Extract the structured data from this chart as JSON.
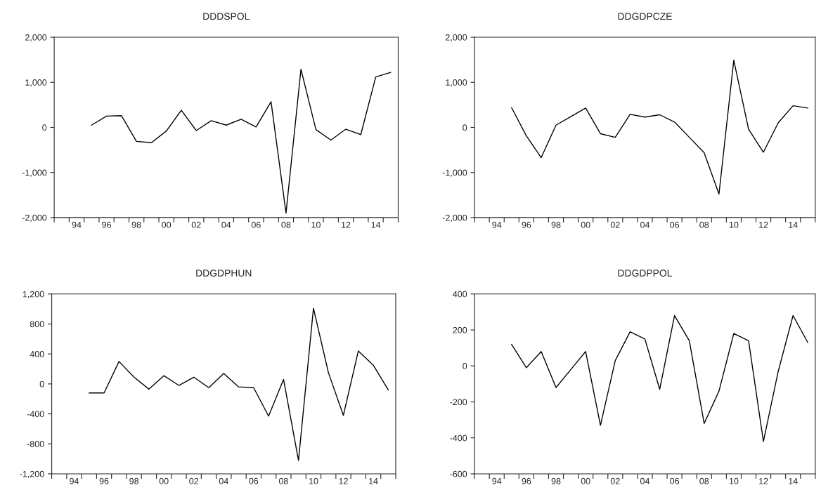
{
  "chart_data": [
    {
      "type": "line",
      "title": "DDDSPOL",
      "x": [
        1995,
        1996,
        1997,
        1998,
        1999,
        2000,
        2001,
        2002,
        2003,
        2004,
        2005,
        2006,
        2007,
        2008,
        2009,
        2010,
        2011,
        2012,
        2013,
        2014,
        2015
      ],
      "series": [
        {
          "color": "#000000",
          "values": [
            50,
            250,
            260,
            -310,
            -340,
            -80,
            380,
            -70,
            150,
            50,
            180,
            10,
            570,
            -1900,
            1290,
            -50,
            -280,
            -40,
            -160,
            1120,
            1220
          ]
        }
      ],
      "xlim": [
        1992.5,
        2015.5
      ],
      "xticks": [
        {
          "value": 1992.5,
          "label": null
        },
        {
          "value": 1993.5,
          "label": null
        },
        {
          "value": 1994,
          "label": "94"
        },
        {
          "value": 1994.5,
          "label": null
        },
        {
          "value": 1995.5,
          "label": null
        },
        {
          "value": 1996,
          "label": "96"
        },
        {
          "value": 1996.5,
          "label": null
        },
        {
          "value": 1997.5,
          "label": null
        },
        {
          "value": 1998,
          "label": "98"
        },
        {
          "value": 1998.5,
          "label": null
        },
        {
          "value": 1999.5,
          "label": null
        },
        {
          "value": 2000,
          "label": "00"
        },
        {
          "value": 2000.5,
          "label": null
        },
        {
          "value": 2001.5,
          "label": null
        },
        {
          "value": 2002,
          "label": "02"
        },
        {
          "value": 2002.5,
          "label": null
        },
        {
          "value": 2003.5,
          "label": null
        },
        {
          "value": 2004,
          "label": "04"
        },
        {
          "value": 2004.5,
          "label": null
        },
        {
          "value": 2005.5,
          "label": null
        },
        {
          "value": 2006,
          "label": "06"
        },
        {
          "value": 2006.5,
          "label": null
        },
        {
          "value": 2007.5,
          "label": null
        },
        {
          "value": 2008,
          "label": "08"
        },
        {
          "value": 2008.5,
          "label": null
        },
        {
          "value": 2009.5,
          "label": null
        },
        {
          "value": 2010,
          "label": "10"
        },
        {
          "value": 2010.5,
          "label": null
        },
        {
          "value": 2011.5,
          "label": null
        },
        {
          "value": 2012,
          "label": "12"
        },
        {
          "value": 2012.5,
          "label": null
        },
        {
          "value": 2013.5,
          "label": null
        },
        {
          "value": 2014,
          "label": "14"
        },
        {
          "value": 2014.5,
          "label": null
        },
        {
          "value": 2015.5,
          "label": null
        }
      ],
      "ylim": [
        -2000,
        2000
      ],
      "yticks": [
        {
          "value": -2000,
          "label": "-2,000"
        },
        {
          "value": -1000,
          "label": "-1,000"
        },
        0,
        {
          "value": 1000,
          "label": "1,000"
        },
        {
          "value": 2000,
          "label": "2,000"
        }
      ],
      "grid": false,
      "line_style": "solid",
      "marker": "none"
    },
    {
      "type": "line",
      "title": "DDGDPCZE",
      "x": [
        1995,
        1996,
        1997,
        1998,
        1999,
        2000,
        2001,
        2002,
        2003,
        2004,
        2005,
        2006,
        2007,
        2008,
        2009,
        2010,
        2011,
        2012,
        2013,
        2014,
        2015
      ],
      "series": [
        {
          "color": "#000000",
          "values": [
            440,
            -190,
            -670,
            50,
            240,
            430,
            -140,
            -220,
            290,
            230,
            280,
            120,
            -220,
            -560,
            -1480,
            1490,
            -40,
            -550,
            100,
            480,
            430
          ]
        }
      ],
      "xlim": [
        1992.5,
        2015.5
      ],
      "xticks": [
        {
          "value": 1992.5,
          "label": null
        },
        {
          "value": 1993.5,
          "label": null
        },
        {
          "value": 1994,
          "label": "94"
        },
        {
          "value": 1994.5,
          "label": null
        },
        {
          "value": 1995.5,
          "label": null
        },
        {
          "value": 1996,
          "label": "96"
        },
        {
          "value": 1996.5,
          "label": null
        },
        {
          "value": 1997.5,
          "label": null
        },
        {
          "value": 1998,
          "label": "98"
        },
        {
          "value": 1998.5,
          "label": null
        },
        {
          "value": 1999.5,
          "label": null
        },
        {
          "value": 2000,
          "label": "00"
        },
        {
          "value": 2000.5,
          "label": null
        },
        {
          "value": 2001.5,
          "label": null
        },
        {
          "value": 2002,
          "label": "02"
        },
        {
          "value": 2002.5,
          "label": null
        },
        {
          "value": 2003.5,
          "label": null
        },
        {
          "value": 2004,
          "label": "04"
        },
        {
          "value": 2004.5,
          "label": null
        },
        {
          "value": 2005.5,
          "label": null
        },
        {
          "value": 2006,
          "label": "06"
        },
        {
          "value": 2006.5,
          "label": null
        },
        {
          "value": 2007.5,
          "label": null
        },
        {
          "value": 2008,
          "label": "08"
        },
        {
          "value": 2008.5,
          "label": null
        },
        {
          "value": 2009.5,
          "label": null
        },
        {
          "value": 2010,
          "label": "10"
        },
        {
          "value": 2010.5,
          "label": null
        },
        {
          "value": 2011.5,
          "label": null
        },
        {
          "value": 2012,
          "label": "12"
        },
        {
          "value": 2012.5,
          "label": null
        },
        {
          "value": 2013.5,
          "label": null
        },
        {
          "value": 2014,
          "label": "14"
        },
        {
          "value": 2014.5,
          "label": null
        },
        {
          "value": 2015.5,
          "label": null
        }
      ],
      "ylim": [
        -2000,
        2000
      ],
      "yticks": [
        {
          "value": -2000,
          "label": "-2,000"
        },
        {
          "value": -1000,
          "label": "-1,000"
        },
        0,
        {
          "value": 1000,
          "label": "1,000"
        },
        {
          "value": 2000,
          "label": "2,000"
        }
      ],
      "grid": false,
      "line_style": "solid",
      "marker": "none"
    },
    {
      "type": "line",
      "title": "DDGDPHUN",
      "x": [
        1995,
        1996,
        1997,
        1998,
        1999,
        2000,
        2001,
        2002,
        2003,
        2004,
        2005,
        2006,
        2007,
        2008,
        2009,
        2010,
        2011,
        2012,
        2013,
        2014,
        2015
      ],
      "series": [
        {
          "color": "#000000",
          "values": [
            -120,
            -120,
            300,
            90,
            -70,
            110,
            -20,
            90,
            -50,
            140,
            -40,
            -50,
            -430,
            60,
            -1020,
            1010,
            150,
            -420,
            440,
            250,
            -80
          ]
        }
      ],
      "xlim": [
        1992.5,
        2015.5
      ],
      "xticks": [
        {
          "value": 1992.5,
          "label": null
        },
        {
          "value": 1993.5,
          "label": null
        },
        {
          "value": 1994,
          "label": "94"
        },
        {
          "value": 1994.5,
          "label": null
        },
        {
          "value": 1995.5,
          "label": null
        },
        {
          "value": 1996,
          "label": "96"
        },
        {
          "value": 1996.5,
          "label": null
        },
        {
          "value": 1997.5,
          "label": null
        },
        {
          "value": 1998,
          "label": "98"
        },
        {
          "value": 1998.5,
          "label": null
        },
        {
          "value": 1999.5,
          "label": null
        },
        {
          "value": 2000,
          "label": "00"
        },
        {
          "value": 2000.5,
          "label": null
        },
        {
          "value": 2001.5,
          "label": null
        },
        {
          "value": 2002,
          "label": "02"
        },
        {
          "value": 2002.5,
          "label": null
        },
        {
          "value": 2003.5,
          "label": null
        },
        {
          "value": 2004,
          "label": "04"
        },
        {
          "value": 2004.5,
          "label": null
        },
        {
          "value": 2005.5,
          "label": null
        },
        {
          "value": 2006,
          "label": "06"
        },
        {
          "value": 2006.5,
          "label": null
        },
        {
          "value": 2007.5,
          "label": null
        },
        {
          "value": 2008,
          "label": "08"
        },
        {
          "value": 2008.5,
          "label": null
        },
        {
          "value": 2009.5,
          "label": null
        },
        {
          "value": 2010,
          "label": "10"
        },
        {
          "value": 2010.5,
          "label": null
        },
        {
          "value": 2011.5,
          "label": null
        },
        {
          "value": 2012,
          "label": "12"
        },
        {
          "value": 2012.5,
          "label": null
        },
        {
          "value": 2013.5,
          "label": null
        },
        {
          "value": 2014,
          "label": "14"
        },
        {
          "value": 2014.5,
          "label": null
        },
        {
          "value": 2015.5,
          "label": null
        }
      ],
      "ylim": [
        -1200,
        1200
      ],
      "yticks": [
        {
          "value": -1200,
          "label": "-1,200"
        },
        -800,
        -400,
        0,
        400,
        800,
        {
          "value": 1200,
          "label": "1,200"
        }
      ],
      "grid": false,
      "line_style": "solid",
      "marker": "none"
    },
    {
      "type": "line",
      "title": "DDGDPPOL",
      "x": [
        1995,
        1996,
        1997,
        1998,
        1999,
        2000,
        2001,
        2002,
        2003,
        2004,
        2005,
        2006,
        2007,
        2008,
        2009,
        2010,
        2011,
        2012,
        2013,
        2014,
        2015
      ],
      "series": [
        {
          "color": "#000000",
          "values": [
            120,
            -10,
            80,
            -120,
            -20,
            80,
            -330,
            30,
            190,
            150,
            -130,
            280,
            140,
            -320,
            -140,
            180,
            140,
            -420,
            -30,
            280,
            130
          ]
        }
      ],
      "xlim": [
        1992.5,
        2015.5
      ],
      "xticks": [
        {
          "value": 1992.5,
          "label": null
        },
        {
          "value": 1993.5,
          "label": null
        },
        {
          "value": 1994,
          "label": "94"
        },
        {
          "value": 1994.5,
          "label": null
        },
        {
          "value": 1995.5,
          "label": null
        },
        {
          "value": 1996,
          "label": "96"
        },
        {
          "value": 1996.5,
          "label": null
        },
        {
          "value": 1997.5,
          "label": null
        },
        {
          "value": 1998,
          "label": "98"
        },
        {
          "value": 1998.5,
          "label": null
        },
        {
          "value": 1999.5,
          "label": null
        },
        {
          "value": 2000,
          "label": "00"
        },
        {
          "value": 2000.5,
          "label": null
        },
        {
          "value": 2001.5,
          "label": null
        },
        {
          "value": 2002,
          "label": "02"
        },
        {
          "value": 2002.5,
          "label": null
        },
        {
          "value": 2003.5,
          "label": null
        },
        {
          "value": 2004,
          "label": "04"
        },
        {
          "value": 2004.5,
          "label": null
        },
        {
          "value": 2005.5,
          "label": null
        },
        {
          "value": 2006,
          "label": "06"
        },
        {
          "value": 2006.5,
          "label": null
        },
        {
          "value": 2007.5,
          "label": null
        },
        {
          "value": 2008,
          "label": "08"
        },
        {
          "value": 2008.5,
          "label": null
        },
        {
          "value": 2009.5,
          "label": null
        },
        {
          "value": 2010,
          "label": "10"
        },
        {
          "value": 2010.5,
          "label": null
        },
        {
          "value": 2011.5,
          "label": null
        },
        {
          "value": 2012,
          "label": "12"
        },
        {
          "value": 2012.5,
          "label": null
        },
        {
          "value": 2013.5,
          "label": null
        },
        {
          "value": 2014,
          "label": "14"
        },
        {
          "value": 2014.5,
          "label": null
        },
        {
          "value": 2015.5,
          "label": null
        }
      ],
      "ylim": [
        -600,
        400
      ],
      "yticks": [
        -600,
        -400,
        -200,
        0,
        200,
        400
      ],
      "grid": false,
      "line_style": "solid",
      "marker": "none"
    }
  ]
}
